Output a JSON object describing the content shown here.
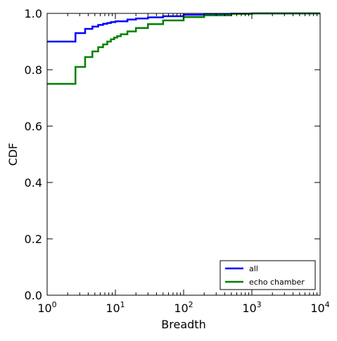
{
  "chart_data": {
    "type": "line",
    "title": "",
    "xlabel": "Breadth",
    "ylabel": "CDF",
    "xscale": "log",
    "xlim": [
      1,
      10000
    ],
    "ylim": [
      0,
      1.0
    ],
    "grid": false,
    "legend_position": "lower-right",
    "x_ticks": [
      {
        "value": 1,
        "base": "10",
        "exp": "0"
      },
      {
        "value": 10,
        "base": "10",
        "exp": "1"
      },
      {
        "value": 100,
        "base": "10",
        "exp": "2"
      },
      {
        "value": 1000,
        "base": "10",
        "exp": "3"
      },
      {
        "value": 10000,
        "base": "10",
        "exp": "4"
      }
    ],
    "y_ticks": [
      {
        "value": 0.0,
        "label": "0.0"
      },
      {
        "value": 0.2,
        "label": "0.2"
      },
      {
        "value": 0.4,
        "label": "0.4"
      },
      {
        "value": 0.6,
        "label": "0.6"
      },
      {
        "value": 0.8,
        "label": "0.8"
      },
      {
        "value": 1.0,
        "label": "1.0"
      }
    ],
    "series": [
      {
        "name": "all",
        "color": "#0000ff",
        "step": true,
        "x": [
          1,
          2.6,
          3.6,
          4.6,
          5.6,
          6.6,
          7.6,
          8.6,
          10,
          15,
          20,
          30,
          50,
          100,
          200,
          500,
          1000,
          3000
        ],
        "y": [
          0.9,
          0.93,
          0.945,
          0.953,
          0.959,
          0.963,
          0.966,
          0.969,
          0.972,
          0.978,
          0.982,
          0.986,
          0.99,
          0.995,
          0.997,
          0.999,
          1.0,
          1.0
        ]
      },
      {
        "name": "echo chamber",
        "color": "#008000",
        "step": true,
        "x": [
          1,
          2.6,
          3.6,
          4.6,
          5.6,
          6.6,
          7.6,
          8.6,
          9.6,
          10.6,
          12,
          15,
          20,
          30,
          50,
          100,
          200,
          500,
          1000,
          2000
        ],
        "y": [
          0.75,
          0.81,
          0.845,
          0.865,
          0.88,
          0.89,
          0.9,
          0.908,
          0.914,
          0.919,
          0.926,
          0.936,
          0.948,
          0.962,
          0.975,
          0.987,
          0.993,
          0.998,
          1.0,
          1.0
        ]
      }
    ]
  }
}
